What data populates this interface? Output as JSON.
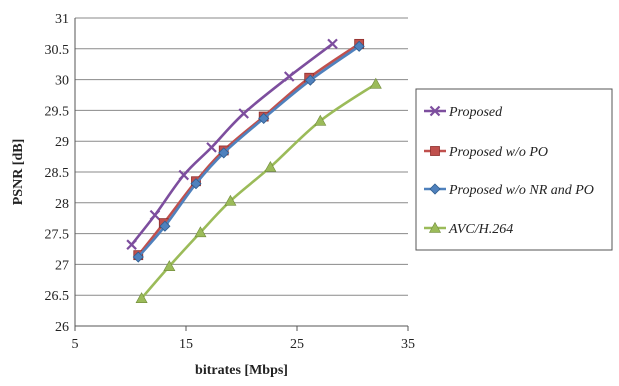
{
  "chart_data": {
    "type": "line",
    "title": "",
    "xlabel": "bitrates [Mbps]",
    "ylabel": "PSNR [dB]",
    "xlim": [
      5,
      35
    ],
    "ylim": [
      26,
      31
    ],
    "x_ticks": [
      "5",
      "15",
      "25",
      "35"
    ],
    "y_ticks": [
      "26",
      "26.5",
      "27",
      "27.5",
      "28",
      "28.5",
      "29",
      "29.5",
      "30",
      "30.5",
      "31"
    ],
    "grid": "horizontal",
    "legend_position": "right",
    "series": [
      {
        "name": "Proposed",
        "color": "#7D4E9E",
        "marker": "x",
        "points": [
          [
            10.1,
            27.32
          ],
          [
            12.2,
            27.8
          ],
          [
            14.8,
            28.45
          ],
          [
            17.3,
            28.9
          ],
          [
            20.2,
            29.45
          ],
          [
            24.3,
            30.05
          ],
          [
            28.2,
            30.58
          ]
        ]
      },
      {
        "name": "Proposed w/o PO",
        "color": "#C0504D",
        "marker": "square",
        "points": [
          [
            10.7,
            27.15
          ],
          [
            13.0,
            27.67
          ],
          [
            15.9,
            28.35
          ],
          [
            18.4,
            28.85
          ],
          [
            22.0,
            29.4
          ],
          [
            26.1,
            30.03
          ],
          [
            30.6,
            30.58
          ]
        ]
      },
      {
        "name": "Proposed w/o NR and PO",
        "color": "#4F81BD",
        "marker": "diamond",
        "points": [
          [
            10.7,
            27.12
          ],
          [
            13.1,
            27.62
          ],
          [
            15.9,
            28.31
          ],
          [
            18.4,
            28.81
          ],
          [
            22.0,
            29.37
          ],
          [
            26.2,
            29.99
          ],
          [
            30.6,
            30.54
          ]
        ]
      },
      {
        "name": "AVC/H.264",
        "color": "#9BBB59",
        "marker": "triangle",
        "points": [
          [
            11.0,
            26.45
          ],
          [
            13.5,
            26.97
          ],
          [
            16.3,
            27.52
          ],
          [
            19.0,
            28.03
          ],
          [
            22.6,
            28.58
          ],
          [
            27.1,
            29.33
          ],
          [
            32.1,
            29.93
          ]
        ]
      }
    ]
  }
}
